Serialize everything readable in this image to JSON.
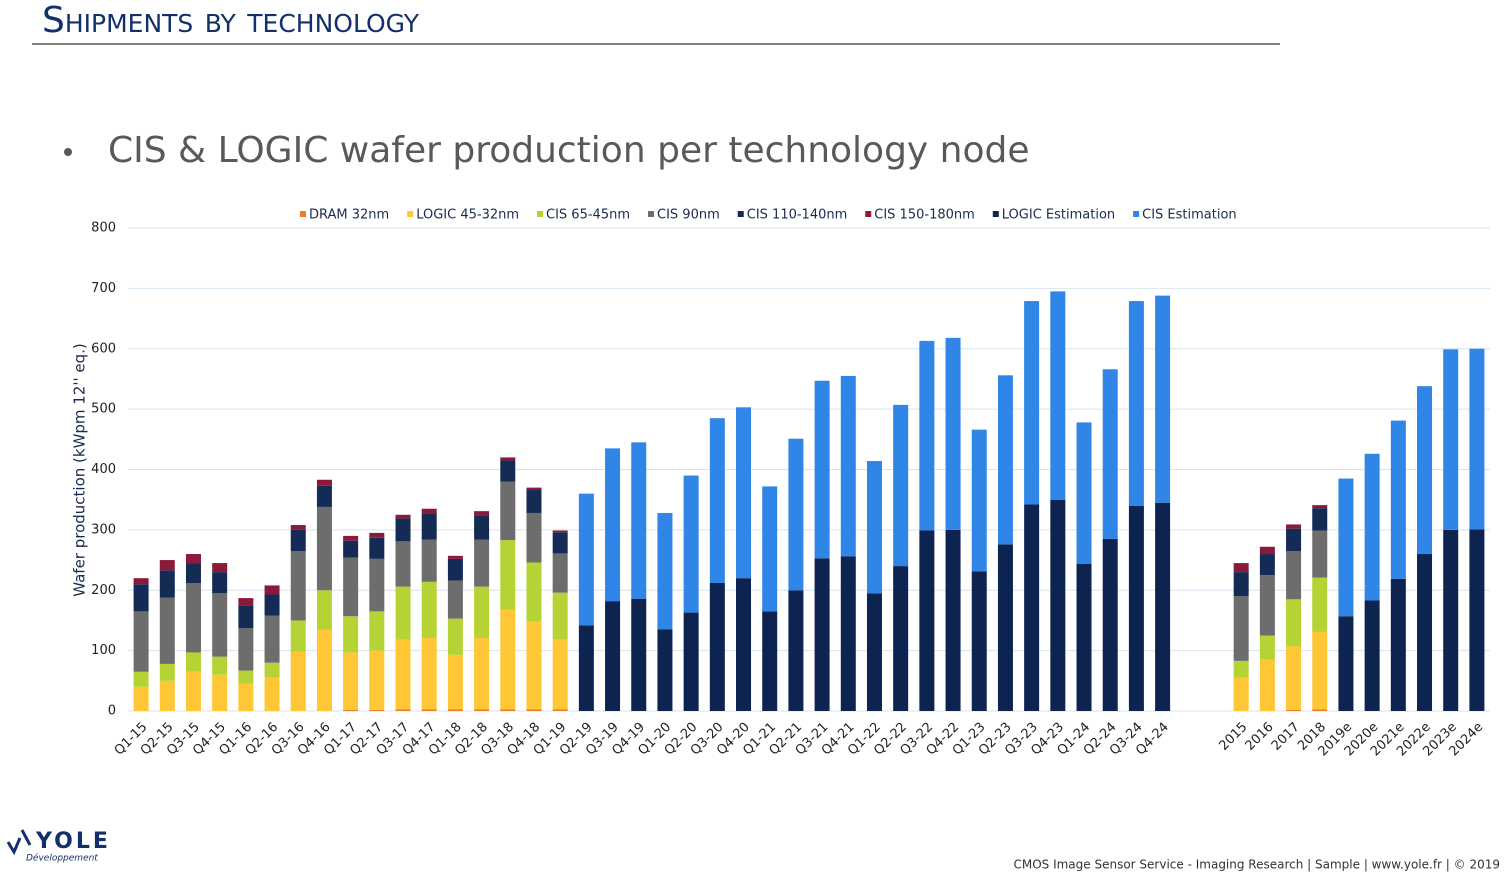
{
  "slide": {
    "title": "Shipments by technology",
    "bullet": "CIS & LOGIC wafer production per technology node",
    "logo": "YOLE",
    "logo_sub": "Développement",
    "footer": "CMOS Image Sensor Service - Imaging Research | Sample | www.yole.fr | © 2019"
  },
  "chart_data": {
    "type": "stacked_bar",
    "y_label": "Wafer production (kWpm 12'' eq.)",
    "categories": [
      "Q1-15",
      "Q2-15",
      "Q3-15",
      "Q4-15",
      "Q1-16",
      "Q2-16",
      "Q3-16",
      "Q4-16",
      "Q1-17",
      "Q2-17",
      "Q3-17",
      "Q4-17",
      "Q1-18",
      "Q2-18",
      "Q3-18",
      "Q4-18",
      "Q1-19",
      "Q2-19",
      "Q3-19",
      "Q4-19",
      "Q1-20",
      "Q2-20",
      "Q3-20",
      "Q4-20",
      "Q1-21",
      "Q2-21",
      "Q3-21",
      "Q4-21",
      "Q1-22",
      "Q2-22",
      "Q3-22",
      "Q4-22",
      "Q1-23",
      "Q2-23",
      "Q3-23",
      "Q4-23",
      "Q1-24",
      "Q2-24",
      "Q3-24",
      "Q4-24",
      null,
      null,
      "2015",
      "2016",
      "2017",
      "2018",
      "2019e",
      "2020e",
      "2021e",
      "2022e",
      "2023e",
      "2024e"
    ],
    "series": [
      {
        "name": "DRAM 32nm",
        "color": "#ed7d31",
        "values": [
          null,
          null,
          null,
          null,
          null,
          null,
          null,
          null,
          2,
          2,
          3,
          3,
          3,
          3,
          3,
          3,
          3,
          null,
          null,
          null,
          null,
          null,
          null,
          null,
          null,
          null,
          null,
          null,
          null,
          null,
          null,
          null,
          null,
          null,
          null,
          null,
          null,
          null,
          null,
          null,
          null,
          null,
          null,
          null,
          2,
          3,
          null,
          null,
          null,
          null,
          null,
          null
        ]
      },
      {
        "name": "LOGIC 45-32nm",
        "color": "#ffc735",
        "values": [
          40,
          50,
          65,
          60,
          45,
          55,
          98,
          135,
          95,
          98,
          115,
          118,
          90,
          118,
          165,
          145,
          115,
          null,
          null,
          null,
          null,
          null,
          null,
          null,
          null,
          null,
          null,
          null,
          null,
          null,
          null,
          null,
          null,
          null,
          null,
          null,
          null,
          null,
          null,
          null,
          null,
          null,
          55,
          85,
          105,
          128,
          null,
          null,
          null,
          null,
          null,
          null
        ]
      },
      {
        "name": "CIS 65-45nm",
        "color": "#b5d334",
        "values": [
          25,
          28,
          32,
          30,
          22,
          25,
          52,
          65,
          60,
          65,
          88,
          93,
          60,
          85,
          115,
          98,
          78,
          null,
          null,
          null,
          null,
          null,
          null,
          null,
          null,
          null,
          null,
          null,
          null,
          null,
          null,
          null,
          null,
          null,
          null,
          null,
          null,
          null,
          null,
          null,
          null,
          null,
          28,
          40,
          78,
          90,
          null,
          null,
          null,
          null,
          null,
          null
        ]
      },
      {
        "name": "CIS 90nm",
        "color": "#6d6d6d",
        "values": [
          100,
          110,
          115,
          105,
          70,
          78,
          115,
          138,
          97,
          87,
          75,
          70,
          63,
          78,
          97,
          82,
          65,
          null,
          null,
          null,
          null,
          null,
          null,
          null,
          null,
          null,
          null,
          null,
          null,
          null,
          null,
          null,
          null,
          null,
          null,
          null,
          null,
          null,
          null,
          null,
          null,
          null,
          107,
          100,
          80,
          78,
          null,
          null,
          null,
          null,
          null,
          null
        ]
      },
      {
        "name": "CIS 110-140nm",
        "color": "#142c55",
        "values": [
          45,
          45,
          33,
          35,
          38,
          35,
          35,
          35,
          28,
          35,
          38,
          43,
          36,
          40,
          35,
          38,
          35,
          null,
          null,
          null,
          null,
          null,
          null,
          null,
          null,
          null,
          null,
          null,
          null,
          null,
          null,
          null,
          null,
          null,
          null,
          null,
          null,
          null,
          null,
          null,
          null,
          null,
          40,
          35,
          37,
          37,
          null,
          null,
          null,
          null,
          null,
          null
        ]
      },
      {
        "name": "CIS 150-180nm",
        "color": "#8b1a3a",
        "values": [
          10,
          17,
          15,
          15,
          12,
          15,
          8,
          10,
          8,
          8,
          6,
          8,
          5,
          7,
          5,
          4,
          3,
          null,
          null,
          null,
          null,
          null,
          null,
          null,
          null,
          null,
          null,
          null,
          null,
          null,
          null,
          null,
          null,
          null,
          null,
          null,
          null,
          null,
          null,
          null,
          null,
          null,
          15,
          12,
          7,
          5,
          null,
          null,
          null,
          null,
          null,
          null
        ]
      },
      {
        "name": "LOGIC Estimation",
        "color": "#0d2350",
        "values": [
          null,
          null,
          null,
          null,
          null,
          null,
          null,
          null,
          null,
          null,
          null,
          null,
          null,
          null,
          null,
          null,
          null,
          142,
          182,
          186,
          135,
          163,
          212,
          220,
          165,
          200,
          253,
          256,
          195,
          240,
          299,
          300,
          231,
          276,
          342,
          350,
          244,
          285,
          340,
          345,
          null,
          null,
          null,
          null,
          null,
          null,
          157,
          183,
          219,
          260,
          300,
          301
        ]
      },
      {
        "name": "CIS Estimation",
        "color": "#2f86e6",
        "values": [
          null,
          null,
          null,
          null,
          null,
          null,
          null,
          null,
          null,
          null,
          null,
          null,
          null,
          null,
          null,
          null,
          null,
          218,
          253,
          259,
          193,
          227,
          273,
          283,
          207,
          251,
          294,
          299,
          219,
          267,
          314,
          318,
          235,
          280,
          337,
          345,
          234,
          281,
          339,
          343,
          null,
          null,
          null,
          null,
          null,
          null,
          228,
          243,
          262,
          278,
          299,
          299
        ]
      }
    ],
    "ylim": [
      0,
      800
    ],
    "yticks": [
      0,
      100,
      200,
      300,
      400,
      500,
      600,
      700,
      800
    ],
    "grid": true
  }
}
